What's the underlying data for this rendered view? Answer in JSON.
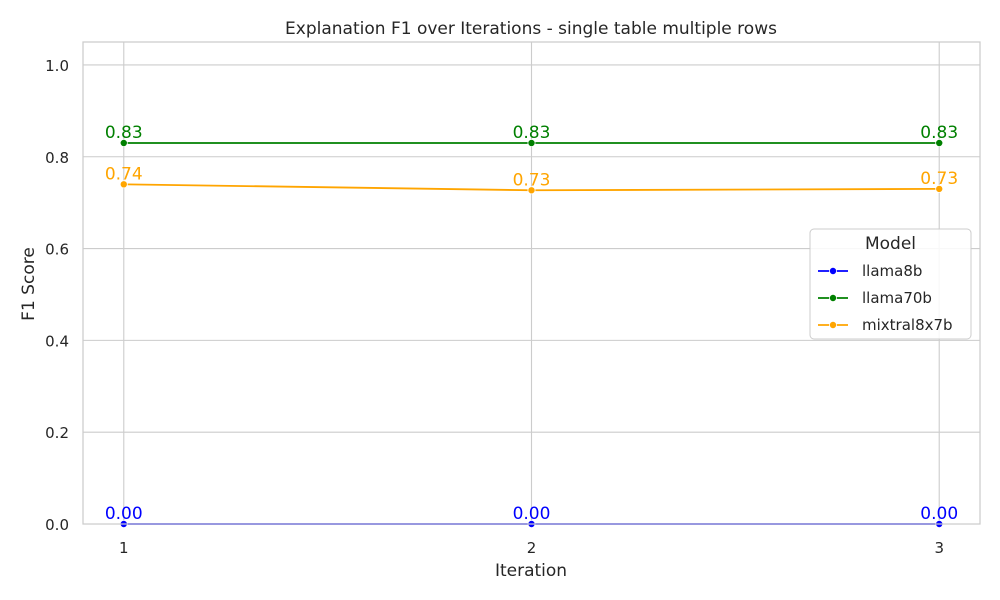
{
  "chart_data": {
    "type": "line",
    "title": "Explanation F1 over Iterations - single table multiple rows",
    "xlabel": "Iteration",
    "ylabel": "F1 Score",
    "x": [
      1,
      2,
      3
    ],
    "x_tick_labels": [
      "1",
      "2",
      "3"
    ],
    "xlim": [
      0.9,
      3.1
    ],
    "ylim": [
      0,
      1.05
    ],
    "y_ticks": [
      0.0,
      0.2,
      0.4,
      0.6,
      0.8,
      1.0
    ],
    "y_tick_labels": [
      "0.0",
      "0.2",
      "0.4",
      "0.6",
      "0.8",
      "1.0"
    ],
    "grid": true,
    "legend": {
      "title": "Model",
      "placement": "center-right"
    },
    "series": [
      {
        "name": "llama8b",
        "color": "#0000ff",
        "values": [
          0.0,
          0.0,
          0.0
        ],
        "value_labels": [
          "0.00",
          "0.00",
          "0.00"
        ]
      },
      {
        "name": "llama70b",
        "color": "#008000",
        "values": [
          0.83,
          0.83,
          0.83
        ],
        "value_labels": [
          "0.83",
          "0.83",
          "0.83"
        ]
      },
      {
        "name": "mixtral8x7b",
        "color": "#ffa500",
        "values": [
          0.74,
          0.727,
          0.73
        ],
        "value_labels": [
          "0.74",
          "0.73",
          "0.73"
        ]
      }
    ]
  }
}
